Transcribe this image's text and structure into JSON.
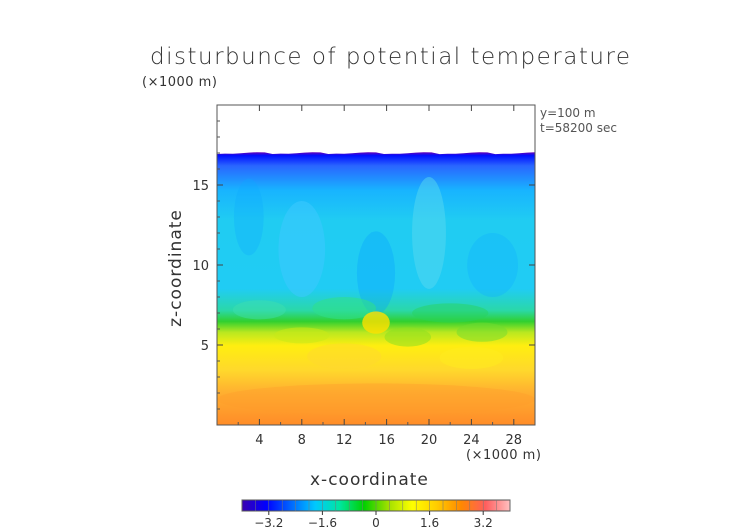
{
  "chart_data": {
    "type": "heatmap",
    "title": "disturbunce of potential temperature",
    "axis_unit_label": "(×1000 m)",
    "info": [
      "y=100 m",
      "t=58200 sec"
    ],
    "xlabel": "x-coordinate",
    "ylabel": "z-coordinate",
    "xlim": [
      0,
      30
    ],
    "ylim": [
      0,
      20
    ],
    "x_ticks": [
      4,
      8,
      12,
      16,
      20,
      24,
      28
    ],
    "y_ticks": [
      5,
      10,
      15
    ],
    "colorbar": {
      "range": [
        -4,
        4
      ],
      "tick_values": [
        -3.2,
        -1.6,
        0,
        1.6,
        3.2
      ],
      "tick_labels": [
        "−3.2",
        "−1.6",
        "0",
        "1.6",
        "3.2"
      ],
      "colors": [
        "#3a00b0",
        "#0000ff",
        "#0066ff",
        "#00c8ff",
        "#00e6a0",
        "#00d000",
        "#a0e000",
        "#ffff00",
        "#ffcc00",
        "#ff8800",
        "#ff5e5e",
        "#ffc0c0"
      ]
    },
    "field_layers": [
      {
        "z_range": [
          17,
          20
        ],
        "value": null,
        "description": "no data"
      },
      {
        "z_range": [
          15.5,
          17
        ],
        "value": -3.0
      },
      {
        "z_range": [
          8,
          15.5
        ],
        "value": -1.0
      },
      {
        "z_range": [
          6,
          8
        ],
        "value": 0.4
      },
      {
        "z_range": [
          3.5,
          6
        ],
        "value": 1.4
      },
      {
        "z_range": [
          0,
          3.5
        ],
        "value": 2.6
      }
    ]
  }
}
